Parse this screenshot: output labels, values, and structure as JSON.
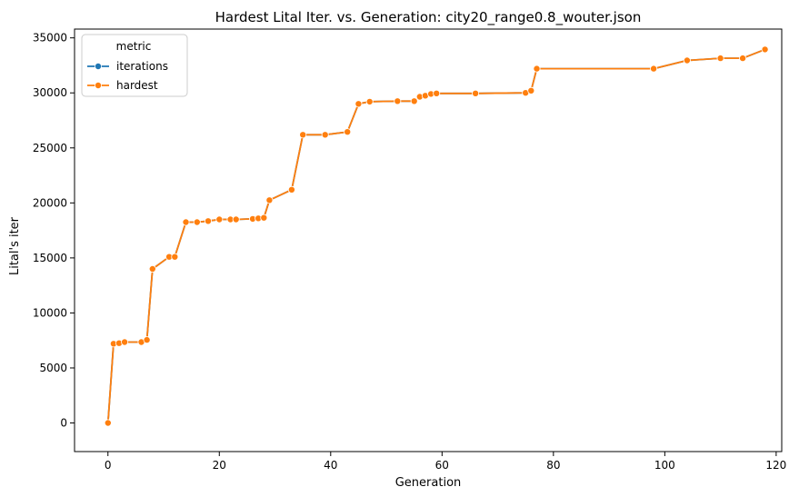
{
  "chart_data": {
    "type": "line",
    "title": "Hardest Lital Iter. vs. Generation: city20_range0.8_wouter.json",
    "xlabel": "Generation",
    "ylabel": "Lital's iter",
    "xlim": [
      -6,
      121
    ],
    "ylim": [
      -2600,
      35800
    ],
    "xticks": [
      0,
      20,
      40,
      60,
      80,
      100,
      120
    ],
    "yticks": [
      0,
      5000,
      10000,
      15000,
      20000,
      25000,
      30000,
      35000
    ],
    "grid": false,
    "legend": {
      "title": "metric",
      "placement": "top-left"
    },
    "x": [
      0,
      1,
      2,
      3,
      6,
      7,
      8,
      11,
      12,
      14,
      16,
      18,
      20,
      22,
      23,
      26,
      27,
      28,
      29,
      33,
      35,
      39,
      43,
      45,
      47,
      52,
      55,
      56,
      57,
      58,
      59,
      66,
      75,
      76,
      77,
      98,
      104,
      110,
      114,
      118
    ],
    "series": [
      {
        "name": "iterations",
        "color": "#1f77b4",
        "values": [
          0,
          7200,
          7250,
          7350,
          7350,
          7550,
          14000,
          15100,
          15100,
          18250,
          18250,
          18350,
          18500,
          18500,
          18500,
          18550,
          18600,
          18650,
          20250,
          21200,
          26200,
          26200,
          26450,
          29000,
          29200,
          29250,
          29250,
          29650,
          29750,
          29900,
          29950,
          29950,
          30000,
          30200,
          32200,
          32200,
          32950,
          33150,
          33150,
          33950
        ]
      },
      {
        "name": "hardest",
        "color": "#ff7f0e",
        "values": [
          0,
          7200,
          7250,
          7350,
          7350,
          7550,
          14000,
          15100,
          15100,
          18250,
          18250,
          18350,
          18500,
          18500,
          18500,
          18550,
          18600,
          18650,
          20250,
          21200,
          26200,
          26200,
          26450,
          29000,
          29200,
          29250,
          29250,
          29650,
          29750,
          29900,
          29950,
          29950,
          30000,
          30200,
          32200,
          32200,
          32950,
          33150,
          33150,
          33950
        ]
      }
    ]
  }
}
